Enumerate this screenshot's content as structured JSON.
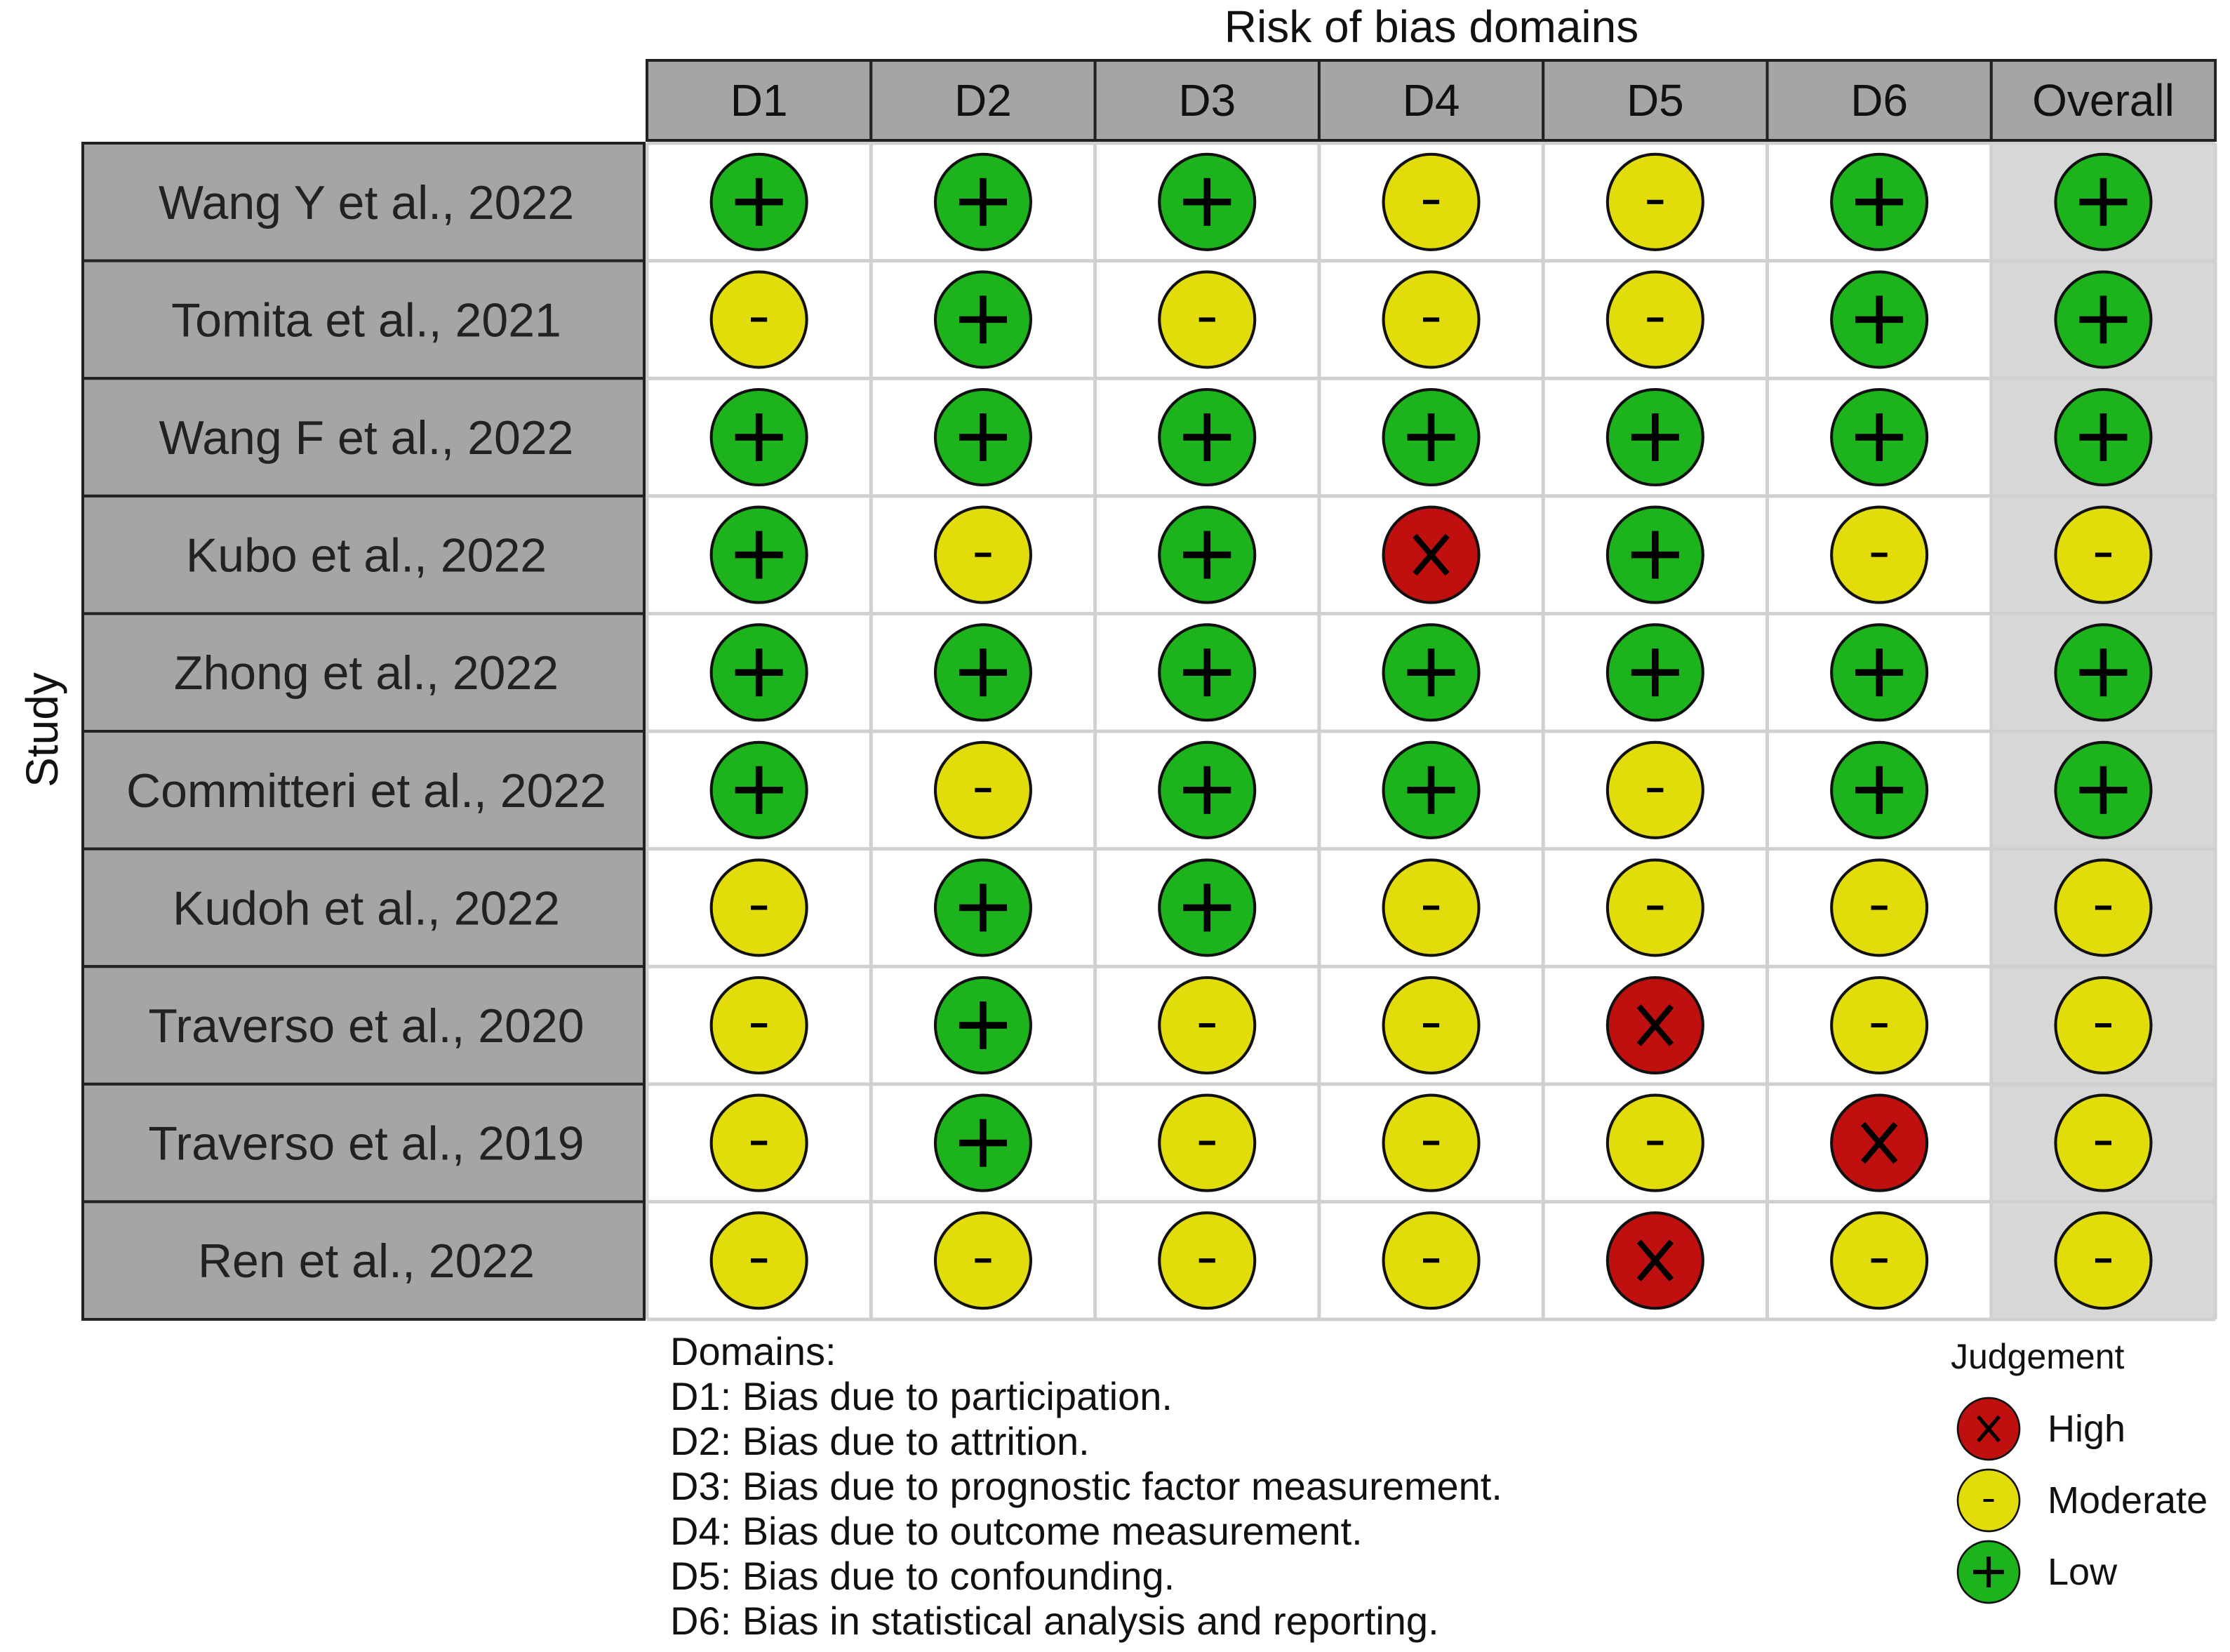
{
  "chart_data": {
    "type": "table",
    "title": "Risk of bias domains",
    "ylabel": "Study",
    "columns": [
      "D1",
      "D2",
      "D3",
      "D4",
      "D5",
      "D6",
      "Overall"
    ],
    "rows": [
      {
        "study": "Wang Y et al., 2022",
        "judgements": [
          "+",
          "+",
          "+",
          "-",
          "-",
          "+",
          "+"
        ]
      },
      {
        "study": "Tomita et al., 2021",
        "judgements": [
          "-",
          "+",
          "-",
          "-",
          "-",
          "+",
          "+"
        ]
      },
      {
        "study": "Wang F et al., 2022",
        "judgements": [
          "+",
          "+",
          "+",
          "+",
          "+",
          "+",
          "+"
        ]
      },
      {
        "study": "Kubo et al., 2022",
        "judgements": [
          "+",
          "-",
          "+",
          "X",
          "+",
          "-",
          "-"
        ]
      },
      {
        "study": "Zhong et al., 2022",
        "judgements": [
          "+",
          "+",
          "+",
          "+",
          "+",
          "+",
          "+"
        ]
      },
      {
        "study": "Committeri et al., 2022",
        "judgements": [
          "+",
          "-",
          "+",
          "+",
          "-",
          "+",
          "+"
        ]
      },
      {
        "study": "Kudoh et al., 2022",
        "judgements": [
          "-",
          "+",
          "+",
          "-",
          "-",
          "-",
          "-"
        ]
      },
      {
        "study": "Traverso et al., 2020",
        "judgements": [
          "-",
          "+",
          "-",
          "-",
          "X",
          "-",
          "-"
        ]
      },
      {
        "study": "Traverso et al., 2019",
        "judgements": [
          "-",
          "+",
          "-",
          "-",
          "-",
          "X",
          "-"
        ]
      },
      {
        "study": "Ren et al., 2022",
        "judgements": [
          "-",
          "-",
          "-",
          "-",
          "X",
          "-",
          "-"
        ]
      }
    ],
    "domains": {
      "heading": "Domains:",
      "items": [
        "D1: Bias due to participation.",
        "D2: Bias due to attrition.",
        "D3: Bias due to prognostic factor measurement.",
        "D4: Bias due to outcome measurement.",
        "D5: Bias due to confounding.",
        "D6: Bias in statistical analysis and reporting."
      ]
    },
    "legend": {
      "title": "Judgement",
      "placement": "bottom-right",
      "items": [
        {
          "symbol": "X",
          "label": "High"
        },
        {
          "symbol": "-",
          "label": "Moderate"
        },
        {
          "symbol": "+",
          "label": "Low"
        }
      ]
    },
    "colors": {
      "+": "#1db31d",
      "-": "#e2dc0a",
      "X": "#c00f0f",
      "header_fill": "#a5a5a5",
      "overall_fill": "#d7d7d7",
      "grid": "#d0d0d0"
    }
  }
}
